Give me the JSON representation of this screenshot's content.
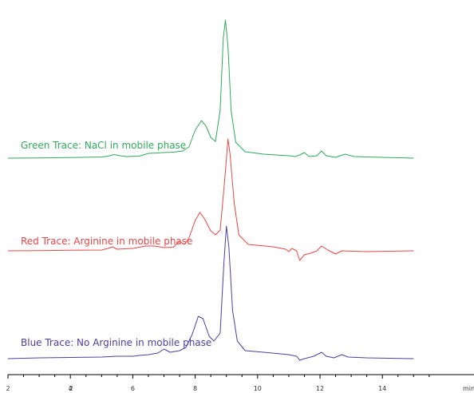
{
  "chart_data": {
    "type": "line",
    "xlabel": "min",
    "xlim": [
      2,
      15
    ],
    "x_ticks": [
      {
        "value": 2,
        "label": "2"
      },
      {
        "value": 4,
        "label": "4"
      },
      {
        "value": 6,
        "label": "6"
      },
      {
        "value": 8,
        "label": "8"
      },
      {
        "value": 10,
        "label": "10"
      },
      {
        "value": 12,
        "label": "12"
      },
      {
        "value": 14,
        "label": "14"
      }
    ],
    "axis_start_label": "2",
    "series": [
      {
        "name": "Green Trace: NaCl in mobile phase",
        "color": "#2eaa5a",
        "points": [
          [
            2.0,
            0.0
          ],
          [
            3.0,
            0.3
          ],
          [
            4.0,
            0.8
          ],
          [
            5.0,
            1.5
          ],
          [
            5.2,
            2.5
          ],
          [
            5.4,
            4.5
          ],
          [
            5.6,
            3.0
          ],
          [
            5.8,
            2.0
          ],
          [
            6.2,
            2.5
          ],
          [
            6.5,
            6.0
          ],
          [
            6.8,
            6.5
          ],
          [
            7.0,
            7.0
          ],
          [
            7.3,
            7.5
          ],
          [
            7.6,
            9.0
          ],
          [
            7.8,
            14.0
          ],
          [
            8.0,
            35.0
          ],
          [
            8.2,
            47.0
          ],
          [
            8.35,
            40.0
          ],
          [
            8.5,
            26.0
          ],
          [
            8.65,
            21.0
          ],
          [
            8.8,
            60.0
          ],
          [
            8.9,
            150.0
          ],
          [
            8.97,
            173.0
          ],
          [
            9.05,
            140.0
          ],
          [
            9.15,
            60.0
          ],
          [
            9.3,
            20.0
          ],
          [
            9.6,
            8.0
          ],
          [
            10.2,
            5.0
          ],
          [
            11.0,
            3.0
          ],
          [
            11.2,
            2.0
          ],
          [
            11.35,
            4.0
          ],
          [
            11.5,
            7.0
          ],
          [
            11.65,
            2.0
          ],
          [
            11.9,
            3.0
          ],
          [
            12.05,
            9.0
          ],
          [
            12.2,
            3.0
          ],
          [
            12.5,
            1.0
          ],
          [
            12.8,
            5.0
          ],
          [
            13.1,
            2.0
          ],
          [
            14.0,
            1.0
          ],
          [
            15.0,
            0.0
          ]
        ]
      },
      {
        "name": "Red Trace: Arginine in mobile phase",
        "color": "#e64646",
        "points": [
          [
            2.0,
            0.0
          ],
          [
            3.0,
            0.3
          ],
          [
            4.0,
            0.8
          ],
          [
            5.0,
            1.0
          ],
          [
            5.2,
            3.0
          ],
          [
            5.35,
            5.0
          ],
          [
            5.5,
            2.0
          ],
          [
            6.0,
            3.0
          ],
          [
            6.4,
            6.0
          ],
          [
            6.7,
            6.0
          ],
          [
            7.0,
            4.0
          ],
          [
            7.3,
            4.5
          ],
          [
            7.5,
            12.0
          ],
          [
            7.65,
            8.0
          ],
          [
            7.8,
            16.0
          ],
          [
            8.0,
            38.0
          ],
          [
            8.15,
            48.0
          ],
          [
            8.3,
            40.0
          ],
          [
            8.5,
            25.0
          ],
          [
            8.65,
            20.0
          ],
          [
            8.8,
            26.0
          ],
          [
            8.95,
            90.0
          ],
          [
            9.05,
            140.0
          ],
          [
            9.12,
            120.0
          ],
          [
            9.25,
            60.0
          ],
          [
            9.4,
            20.0
          ],
          [
            9.7,
            8.0
          ],
          [
            10.5,
            5.0
          ],
          [
            10.9,
            2.0
          ],
          [
            11.0,
            -1.0
          ],
          [
            11.1,
            3.0
          ],
          [
            11.25,
            0.0
          ],
          [
            11.35,
            -12.0
          ],
          [
            11.5,
            -5.0
          ],
          [
            11.7,
            -3.0
          ],
          [
            11.9,
            0.0
          ],
          [
            12.05,
            6.0
          ],
          [
            12.25,
            1.0
          ],
          [
            12.5,
            -4.0
          ],
          [
            12.7,
            0.0
          ],
          [
            13.5,
            -1.0
          ],
          [
            15.0,
            0.0
          ]
        ]
      },
      {
        "name": "Blue Trace: No Arginine in mobile phase",
        "color": "#4b3fa0",
        "points": [
          [
            2.0,
            0.0
          ],
          [
            3.0,
            1.0
          ],
          [
            4.0,
            1.5
          ],
          [
            5.0,
            2.0
          ],
          [
            5.5,
            3.0
          ],
          [
            6.0,
            3.0
          ],
          [
            6.2,
            4.0
          ],
          [
            6.5,
            5.0
          ],
          [
            6.8,
            7.0
          ],
          [
            7.0,
            12.0
          ],
          [
            7.2,
            8.0
          ],
          [
            7.5,
            10.0
          ],
          [
            7.7,
            14.0
          ],
          [
            7.9,
            30.0
          ],
          [
            8.1,
            53.0
          ],
          [
            8.25,
            50.0
          ],
          [
            8.45,
            28.0
          ],
          [
            8.6,
            22.0
          ],
          [
            8.8,
            32.0
          ],
          [
            8.92,
            120.0
          ],
          [
            9.0,
            166.0
          ],
          [
            9.08,
            140.0
          ],
          [
            9.2,
            60.0
          ],
          [
            9.35,
            22.0
          ],
          [
            9.6,
            10.0
          ],
          [
            10.2,
            8.0
          ],
          [
            11.0,
            5.0
          ],
          [
            11.25,
            3.0
          ],
          [
            11.35,
            -2.0
          ],
          [
            11.5,
            0.0
          ],
          [
            11.8,
            3.0
          ],
          [
            12.05,
            8.0
          ],
          [
            12.2,
            3.0
          ],
          [
            12.45,
            1.0
          ],
          [
            12.7,
            5.0
          ],
          [
            12.9,
            2.0
          ],
          [
            13.5,
            1.0
          ],
          [
            15.0,
            0.0
          ]
        ]
      }
    ]
  }
}
